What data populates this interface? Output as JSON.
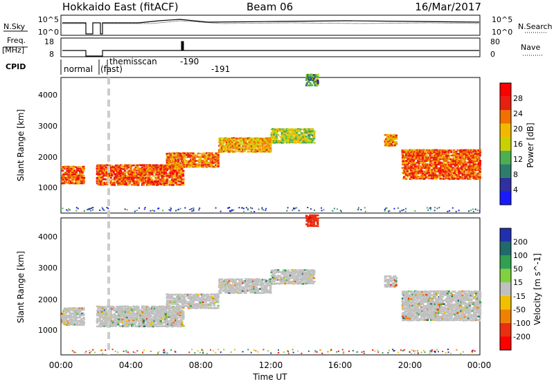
{
  "header": {
    "radar": "Hokkaido East (fitACF)",
    "beam": "Beam 06",
    "date": "16/Mar/2017"
  },
  "status": {
    "nsky_label": "N.Sky",
    "nsky_ticks": [
      "10^5",
      "10^0"
    ],
    "nsearch_label": "N.Search",
    "nsearch_ticks": [
      "10^5",
      "10^0"
    ],
    "freq_label": "Freq.",
    "freq_unit": "[MHz]",
    "freq_ticks": [
      "18",
      "8"
    ],
    "nave_label": "Nave",
    "nave_ticks": [
      "80",
      "0"
    ],
    "cpid_label": "CPID",
    "cpid_entries": [
      "normal",
      "(fast)",
      "themisscan",
      "-190",
      "-191"
    ]
  },
  "power_panel": {
    "ylabel": "Slant Range [km]",
    "yticks": [
      "1000",
      "2000",
      "3000",
      "4000"
    ],
    "colorbar_label": "Power [dB]",
    "colorbar_ticks": [
      "4",
      "8",
      "12",
      "16",
      "20",
      "24",
      "28"
    ],
    "colors": [
      "#1a1aff",
      "#3030a0",
      "#2e7d6b",
      "#4caf50",
      "#c8d000",
      "#f2b800",
      "#f07000",
      "#e82010",
      "#ff0000"
    ]
  },
  "velocity_panel": {
    "ylabel": "Slant Range [km]",
    "yticks": [
      "1000",
      "2000",
      "3000",
      "4000"
    ],
    "colorbar_label": "Velocity [m s^-1]",
    "colorbar_ticks": [
      "200",
      "100",
      "50",
      "15",
      "-15",
      "-50",
      "-100",
      "-200"
    ],
    "colors": [
      "#2030b0",
      "#206a6a",
      "#30a050",
      "#80d040",
      "#c0c0c0",
      "#f0c000",
      "#f08000",
      "#e83010",
      "#ff0000"
    ]
  },
  "xaxis": {
    "label": "Time UT",
    "ticks": [
      "00:00",
      "04:00",
      "08:00",
      "12:00",
      "16:00",
      "20:00",
      "00:00"
    ]
  },
  "chart_data": {
    "type": "heatmap",
    "title": "Hokkaido East (fitACF) Beam 06 16/Mar/2017",
    "xlabel": "Time UT",
    "ylabel": "Slant Range [km]",
    "x_range_hours": [
      0,
      24
    ],
    "y_range_km": [
      0,
      4500
    ],
    "power_colorbar_db": [
      4,
      8,
      12,
      16,
      20,
      24,
      28
    ],
    "velocity_colorbar_ms": [
      -200,
      -100,
      -50,
      -15,
      15,
      50,
      100,
      200
    ],
    "scatter_regions": [
      {
        "t_start": 0.0,
        "t_end": 1.3,
        "range_low_km": 950,
        "range_high_km": 1550,
        "power_db": 28,
        "velocity_ms": 0
      },
      {
        "t_start": 2.0,
        "t_end": 7.0,
        "range_low_km": 900,
        "range_high_km": 1600,
        "power_db": 28,
        "velocity_ms": 0
      },
      {
        "t_start": 6.0,
        "t_end": 9.0,
        "range_low_km": 1500,
        "range_high_km": 2000,
        "power_db": 26,
        "velocity_ms": 0
      },
      {
        "t_start": 9.0,
        "t_end": 12.0,
        "range_low_km": 2000,
        "range_high_km": 2500,
        "power_db": 24,
        "velocity_ms": 0
      },
      {
        "t_start": 12.0,
        "t_end": 14.5,
        "range_low_km": 2300,
        "range_high_km": 2800,
        "power_db": 20,
        "velocity_ms": 0
      },
      {
        "t_start": 14.0,
        "t_end": 14.7,
        "range_low_km": 4200,
        "range_high_km": 4600,
        "power_db": 16,
        "velocity_ms": -200
      },
      {
        "t_start": 18.5,
        "t_end": 19.2,
        "range_low_km": 2200,
        "range_high_km": 2600,
        "power_db": 26,
        "velocity_ms": 0
      },
      {
        "t_start": 19.5,
        "t_end": 24.0,
        "range_low_km": 1100,
        "range_high_km": 2100,
        "power_db": 28,
        "velocity_ms": 0
      }
    ]
  }
}
